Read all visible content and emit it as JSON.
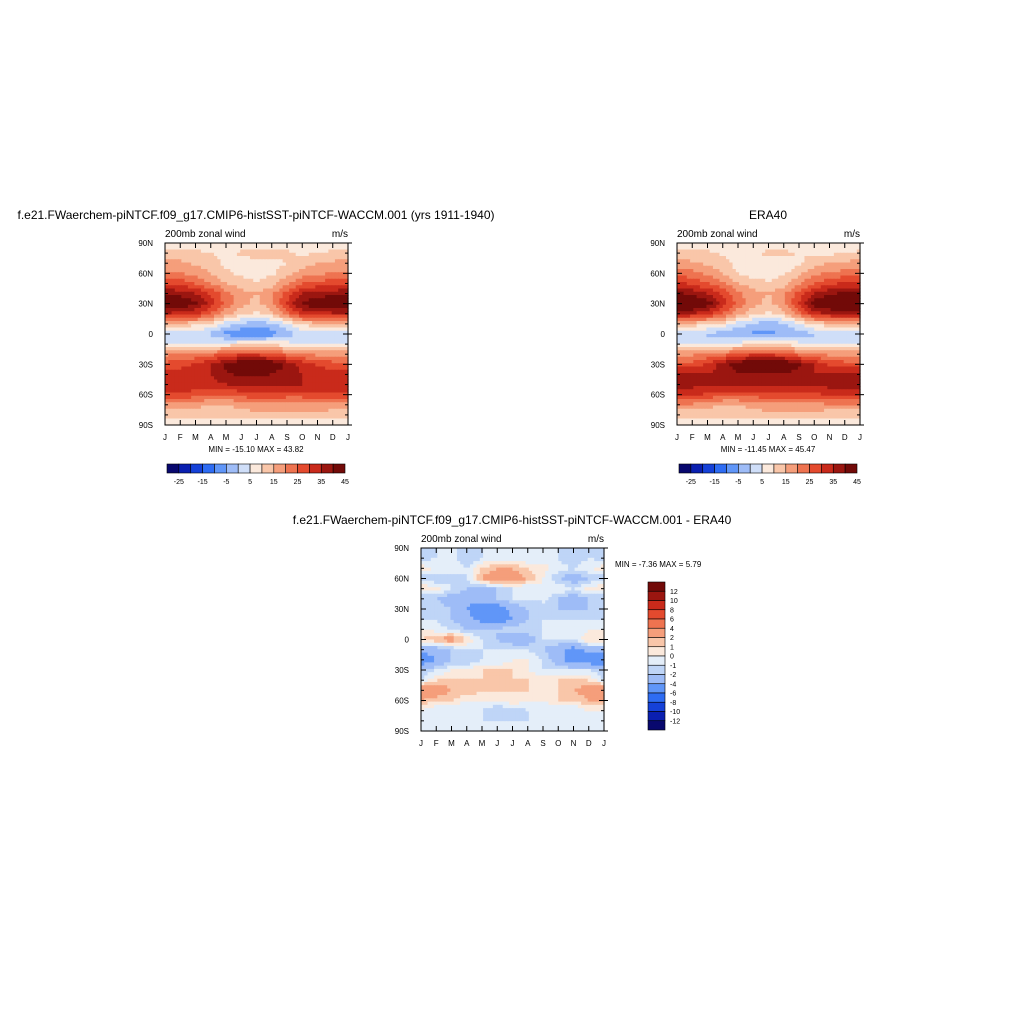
{
  "panels": [
    {
      "title": "f.e21.FWaerchem-piNTCF.f09_g17.CMIP6-histSST-piNTCF-WACCM.001 (yrs 1911-1940)",
      "left_label": "200mb zonal wind",
      "right_label": "m/s",
      "stats": "MIN = -15.10 MAX =  43.82"
    },
    {
      "title": "ERA40",
      "left_label": "200mb zonal wind",
      "right_label": "m/s",
      "stats": "MIN = -11.45 MAX =  45.47"
    },
    {
      "title": "f.e21.FWaerchem-piNTCF.f09_g17.CMIP6-histSST-piNTCF-WACCM.001 - ERA40",
      "left_label": "200mb zonal wind",
      "right_label": "m/s",
      "stats": "MIN =  -7.36 MAX =   5.79"
    }
  ],
  "colorbars": {
    "field": {
      "colors": [
        "#08086e",
        "#0a1fb0",
        "#1541d8",
        "#2e6cf3",
        "#6096f8",
        "#9ebcf7",
        "#cfdef8",
        "#fbe9dc",
        "#f9c6a9",
        "#f59e7b",
        "#ee7350",
        "#e44a2e",
        "#c92a1b",
        "#9b1610",
        "#720a08"
      ],
      "labels": [
        "-25",
        "-15",
        "-5",
        "5",
        "15",
        "25",
        "35",
        "45"
      ]
    },
    "diff": {
      "colors": [
        "#720a08",
        "#9b1610",
        "#c92a1b",
        "#e44a2e",
        "#ee7350",
        "#f59e7b",
        "#f9c6a9",
        "#fbe9dc",
        "#e4eef9",
        "#bfd5f7",
        "#9ebcf7",
        "#6096f8",
        "#2e6cf3",
        "#1541d8",
        "#0a1fb0",
        "#08086e"
      ],
      "labels": [
        "12",
        "10",
        "8",
        "6",
        "4",
        "2",
        "1",
        "0",
        "-1",
        "-2",
        "-4",
        "-6",
        "-8",
        "-10",
        "-12"
      ]
    }
  },
  "chart_data": [
    {
      "type": "heatmap",
      "title": "f.e21.FWaerchem-piNTCF.f09_g17.CMIP6-histSST-piNTCF-WACCM.001 (yrs 1911-1940)",
      "variable": "200mb zonal wind",
      "units": "m/s",
      "x_ticks": [
        "J",
        "F",
        "M",
        "A",
        "M",
        "J",
        "J",
        "A",
        "S",
        "O",
        "N",
        "D",
        "J"
      ],
      "y_ticks": [
        "90N",
        "60N",
        "30N",
        "0",
        "30S",
        "60S",
        "90S"
      ],
      "ylim": [
        -90,
        90
      ],
      "levels": [
        -30,
        -25,
        -20,
        -15,
        -10,
        -5,
        0,
        5,
        10,
        15,
        20,
        25,
        30,
        35,
        40,
        45
      ],
      "lat": [
        90,
        80,
        70,
        60,
        50,
        40,
        30,
        20,
        10,
        0,
        -10,
        -20,
        -30,
        -40,
        -50,
        -60,
        -70,
        -80,
        -90
      ],
      "z": [
        [
          2,
          2,
          2,
          2,
          2,
          2,
          2,
          2,
          2,
          2,
          2,
          2,
          2
        ],
        [
          7,
          7,
          6,
          5,
          4,
          6,
          8,
          8,
          6,
          4,
          5,
          6,
          7
        ],
        [
          12,
          11,
          9,
          7,
          4,
          3,
          2,
          3,
          5,
          8,
          10,
          11,
          12
        ],
        [
          16,
          15,
          13,
          10,
          6,
          4,
          2,
          4,
          8,
          12,
          14,
          15,
          16
        ],
        [
          24,
          23,
          20,
          15,
          10,
          7,
          6,
          8,
          14,
          20,
          22,
          23,
          24
        ],
        [
          34,
          33,
          30,
          24,
          17,
          12,
          10,
          14,
          22,
          30,
          32,
          33,
          34
        ],
        [
          42,
          40,
          36,
          28,
          18,
          12,
          8,
          14,
          26,
          36,
          40,
          41,
          42
        ],
        [
          30,
          28,
          26,
          20,
          12,
          6,
          4,
          8,
          18,
          26,
          28,
          29,
          30
        ],
        [
          8,
          8,
          7,
          4,
          -2,
          -6,
          -8,
          -6,
          0,
          6,
          8,
          8,
          8
        ],
        [
          -3,
          -4,
          -4,
          -6,
          -12,
          -14,
          -15,
          -13,
          -8,
          -4,
          -3,
          -3,
          -3
        ],
        [
          0,
          0,
          0,
          0,
          2,
          4,
          5,
          4,
          2,
          0,
          0,
          0,
          0
        ],
        [
          14,
          15,
          16,
          18,
          22,
          24,
          24,
          22,
          18,
          15,
          14,
          14,
          14
        ],
        [
          22,
          23,
          26,
          30,
          36,
          40,
          42,
          40,
          34,
          28,
          24,
          22,
          22
        ],
        [
          28,
          28,
          28,
          30,
          34,
          36,
          36,
          35,
          32,
          30,
          28,
          28,
          28
        ],
        [
          30,
          30,
          28,
          28,
          30,
          32,
          32,
          32,
          30,
          30,
          30,
          30,
          30
        ],
        [
          24,
          24,
          22,
          20,
          20,
          22,
          24,
          24,
          22,
          22,
          24,
          24,
          24
        ],
        [
          14,
          14,
          12,
          10,
          10,
          12,
          14,
          14,
          14,
          14,
          14,
          14,
          14
        ],
        [
          6,
          6,
          6,
          6,
          6,
          6,
          8,
          8,
          8,
          8,
          8,
          6,
          6
        ],
        [
          2,
          2,
          2,
          2,
          2,
          2,
          2,
          2,
          2,
          2,
          2,
          2,
          2
        ]
      ]
    },
    {
      "type": "heatmap",
      "title": "ERA40",
      "variable": "200mb zonal wind",
      "units": "m/s",
      "x_ticks": [
        "J",
        "F",
        "M",
        "A",
        "M",
        "J",
        "J",
        "A",
        "S",
        "O",
        "N",
        "D",
        "J"
      ],
      "y_ticks": [
        "90N",
        "60N",
        "30N",
        "0",
        "30S",
        "60S",
        "90S"
      ],
      "ylim": [
        -90,
        90
      ],
      "levels": [
        -30,
        -25,
        -20,
        -15,
        -10,
        -5,
        0,
        5,
        10,
        15,
        20,
        25,
        30,
        35,
        40,
        45
      ],
      "lat": [
        90,
        80,
        70,
        60,
        50,
        40,
        30,
        20,
        10,
        0,
        -10,
        -20,
        -30,
        -40,
        -50,
        -60,
        -70,
        -80,
        -90
      ],
      "z": [
        [
          2,
          2,
          2,
          2,
          2,
          2,
          2,
          2,
          2,
          2,
          2,
          2,
          2
        ],
        [
          6,
          6,
          6,
          4,
          3,
          5,
          6,
          6,
          5,
          4,
          4,
          5,
          6
        ],
        [
          12,
          11,
          9,
          7,
          3,
          1,
          0,
          1,
          4,
          8,
          10,
          11,
          12
        ],
        [
          18,
          17,
          14,
          10,
          5,
          3,
          2,
          4,
          9,
          14,
          16,
          17,
          18
        ],
        [
          26,
          24,
          20,
          16,
          10,
          7,
          6,
          8,
          14,
          20,
          24,
          26,
          26
        ],
        [
          36,
          34,
          30,
          24,
          16,
          12,
          10,
          14,
          22,
          30,
          34,
          36,
          36
        ],
        [
          44,
          42,
          38,
          28,
          18,
          12,
          8,
          14,
          26,
          38,
          42,
          44,
          44
        ],
        [
          32,
          30,
          26,
          20,
          12,
          6,
          4,
          8,
          18,
          28,
          30,
          32,
          32
        ],
        [
          8,
          8,
          6,
          4,
          -2,
          -6,
          -8,
          -6,
          0,
          6,
          8,
          8,
          8
        ],
        [
          -4,
          -4,
          -6,
          -8,
          -10,
          -11,
          -11,
          -10,
          -8,
          -6,
          -4,
          -4,
          -4
        ],
        [
          0,
          0,
          0,
          0,
          2,
          4,
          4,
          4,
          2,
          0,
          0,
          0,
          0
        ],
        [
          14,
          14,
          16,
          18,
          22,
          24,
          24,
          22,
          18,
          15,
          14,
          14,
          14
        ],
        [
          22,
          22,
          26,
          32,
          38,
          42,
          44,
          42,
          36,
          30,
          24,
          22,
          22
        ],
        [
          30,
          30,
          30,
          32,
          34,
          34,
          34,
          34,
          32,
          30,
          30,
          30,
          30
        ],
        [
          32,
          32,
          30,
          30,
          30,
          30,
          30,
          30,
          30,
          30,
          32,
          32,
          32
        ],
        [
          26,
          26,
          24,
          22,
          22,
          22,
          24,
          24,
          24,
          24,
          26,
          26,
          26
        ],
        [
          14,
          14,
          12,
          10,
          10,
          12,
          14,
          14,
          14,
          14,
          14,
          14,
          14
        ],
        [
          6,
          6,
          6,
          6,
          6,
          6,
          8,
          8,
          8,
          8,
          6,
          6,
          6
        ],
        [
          2,
          2,
          2,
          2,
          2,
          2,
          2,
          2,
          2,
          2,
          2,
          2,
          2
        ]
      ]
    },
    {
      "type": "heatmap",
      "title": "f.e21.FWaerchem-piNTCF.f09_g17.CMIP6-histSST-piNTCF-WACCM.001 - ERA40",
      "variable": "200mb zonal wind",
      "units": "m/s",
      "x_ticks": [
        "J",
        "F",
        "M",
        "A",
        "M",
        "J",
        "J",
        "A",
        "S",
        "O",
        "N",
        "D",
        "J"
      ],
      "y_ticks": [
        "90N",
        "60N",
        "30N",
        "0",
        "30S",
        "60S",
        "90S"
      ],
      "ylim": [
        -90,
        90
      ],
      "levels": [
        -12,
        -10,
        -8,
        -6,
        -4,
        -2,
        -1,
        0,
        1,
        2,
        4,
        6,
        8,
        10,
        12
      ],
      "lat": [
        90,
        80,
        70,
        60,
        50,
        40,
        30,
        20,
        10,
        0,
        -10,
        -20,
        -30,
        -40,
        -50,
        -60,
        -70,
        -80,
        -90
      ],
      "z": [
        [
          -1,
          -1,
          -1,
          -1,
          -1,
          -1,
          -1,
          -1,
          -1,
          -1,
          -1,
          -1,
          -1
        ],
        [
          -1.5,
          -1,
          -0.5,
          -2,
          -1,
          -0.5,
          -0.5,
          -1,
          -0.5,
          -1,
          -2,
          -1,
          -1.5
        ],
        [
          0.5,
          0,
          -0.5,
          -1,
          1,
          2,
          2,
          1,
          0.5,
          -0.5,
          -1,
          0,
          0.5
        ],
        [
          -1.5,
          -2,
          -1.5,
          -1,
          2,
          4,
          3,
          2,
          0,
          -2,
          -3,
          -2,
          -1.5
        ],
        [
          1,
          0.5,
          -1,
          -2,
          -3,
          -2,
          -1,
          -1,
          -0.5,
          0,
          -1,
          0.5,
          1
        ],
        [
          -2,
          -2,
          -3,
          -3,
          -3,
          -2,
          -1,
          -1,
          -0.5,
          -2,
          -3,
          -2,
          -2
        ],
        [
          -2,
          -1.5,
          -2,
          -4,
          -6,
          -6,
          -3,
          -2,
          -2,
          -2,
          -2,
          -2,
          -2
        ],
        [
          -1,
          -1,
          -2,
          -3,
          -5,
          -6,
          -4,
          -2,
          -1,
          -1,
          -1,
          -1,
          -1
        ],
        [
          0,
          -0.5,
          -1,
          -2,
          -2,
          -2,
          -1,
          -1,
          -1,
          0,
          -1,
          0,
          0
        ],
        [
          1,
          2,
          3,
          1,
          -1,
          -2,
          -3,
          -3,
          -1,
          -1,
          -1,
          1,
          1
        ],
        [
          -3,
          -3,
          -2,
          -1,
          -1,
          -1,
          -1,
          -1,
          -2,
          -3,
          -5,
          -3,
          -3
        ],
        [
          -6,
          -4,
          -2,
          -2,
          -1,
          -1,
          0,
          0,
          -1,
          -3,
          -6,
          -6,
          -6
        ],
        [
          -2,
          -1,
          0,
          0,
          1,
          1,
          1,
          0,
          -1,
          -1,
          -1,
          -1,
          -2
        ],
        [
          -1,
          1,
          1,
          1,
          1,
          1,
          1,
          1,
          1,
          1,
          1,
          1,
          -1
        ],
        [
          4,
          4,
          2,
          2,
          1,
          1,
          1,
          1,
          0,
          1,
          2,
          3,
          4
        ],
        [
          2,
          1,
          1,
          0,
          0,
          0,
          1,
          0,
          0,
          1,
          1,
          2,
          2
        ],
        [
          0,
          -1,
          -1,
          -1,
          -1,
          -2,
          -2,
          -1,
          -1,
          -1,
          -1,
          0,
          0
        ],
        [
          -1,
          -1,
          -1,
          -1,
          -1,
          -1,
          -1,
          -1,
          -1,
          -1,
          -1,
          -1,
          -1
        ],
        [
          -1,
          -1,
          -1,
          -1,
          -1,
          -1,
          -1,
          -1,
          -1,
          -1,
          -1,
          -1,
          -1
        ]
      ]
    }
  ]
}
